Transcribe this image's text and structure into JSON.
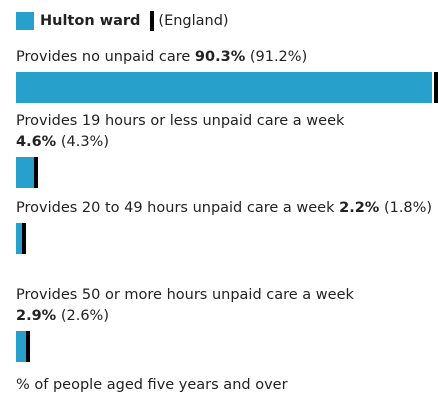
{
  "chart_data": {
    "type": "bar",
    "categories": [
      "Provides no unpaid care",
      "Provides 19 hours or less unpaid care a week",
      "Provides 20 to 49 hours unpaid care a week",
      "Provides 50 or more hours unpaid care a week"
    ],
    "series": [
      {
        "name": "Hulton ward",
        "color": "#27a0cc",
        "values": [
          90.3,
          4.6,
          2.2,
          2.9
        ],
        "value_labels": [
          "90.3%",
          "4.6%",
          "2.2%",
          "2.9%"
        ]
      },
      {
        "name": "(England)",
        "color": "#000000",
        "values": [
          91.2,
          4.3,
          1.8,
          2.6
        ],
        "value_labels": [
          "(91.2%)",
          "(4.3%)",
          "(1.8%)",
          "(2.6%)"
        ]
      }
    ],
    "footnote": "% of people aged five years and over"
  }
}
